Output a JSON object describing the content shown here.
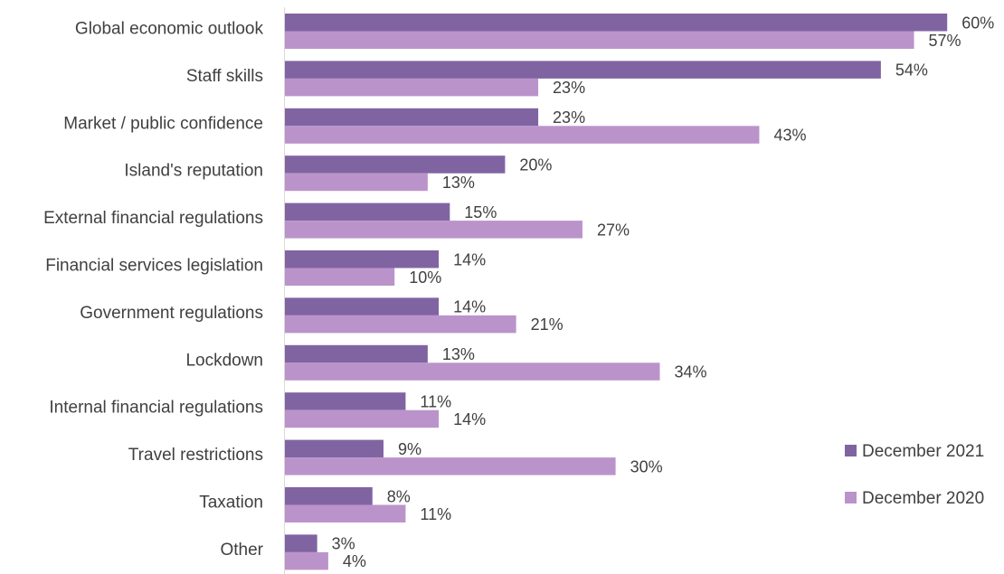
{
  "chart_data": {
    "type": "bar",
    "orientation": "horizontal",
    "categories": [
      "Global economic outlook",
      "Staff skills",
      "Market / public confidence",
      "Island's reputation",
      "External financial regulations",
      "Financial services legislation",
      "Government regulations",
      "Lockdown",
      "Internal financial regulations",
      "Travel restrictions",
      "Taxation",
      "Other"
    ],
    "series": [
      {
        "name": "December 2021",
        "color": "#8064a2",
        "values": [
          60,
          54,
          23,
          20,
          15,
          14,
          14,
          13,
          11,
          9,
          8,
          3
        ],
        "labels": [
          "60%",
          "54%",
          "23%",
          "20%",
          "15%",
          "14%",
          "14%",
          "13%",
          "11%",
          "9%",
          "8%",
          "3%"
        ]
      },
      {
        "name": "December 2020",
        "color": "#bb93cb",
        "values": [
          57,
          23,
          43,
          13,
          27,
          10,
          21,
          34,
          14,
          30,
          11,
          4
        ],
        "labels": [
          "57%",
          "23%",
          "43%",
          "13%",
          "27%",
          "10%",
          "21%",
          "34%",
          "14%",
          "30%",
          "11%",
          "4%"
        ]
      }
    ],
    "xlim": [
      0,
      60
    ],
    "unit": "%",
    "grid": false,
    "legend_position": "right"
  }
}
